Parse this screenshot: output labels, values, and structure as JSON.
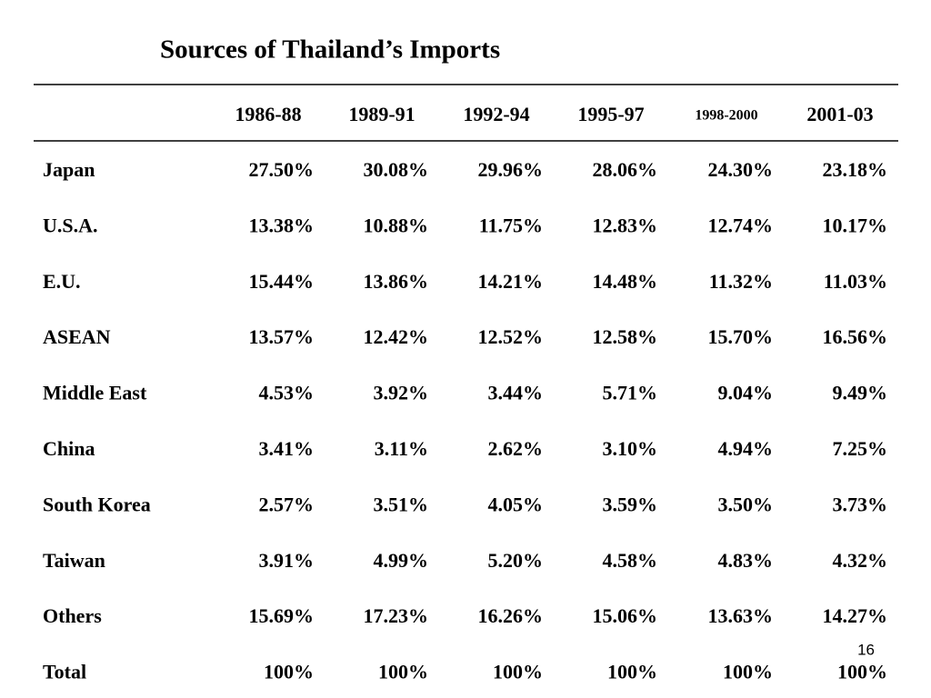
{
  "header": {
    "title": "Sources of Thailand’s Imports"
  },
  "table": {
    "columns": [
      "1986-88",
      "1989-91",
      "1992-94",
      "1995-97",
      "1998-2000",
      "2001-03"
    ],
    "rows": [
      [
        "Japan",
        "27.50%",
        "30.08%",
        "29.96%",
        "28.06%",
        "24.30%",
        "23.18%"
      ],
      [
        "U.S.A.",
        "13.38%",
        "10.88%",
        "11.75%",
        "12.83%",
        "12.74%",
        "10.17%"
      ],
      [
        "E.U.",
        "15.44%",
        "13.86%",
        "14.21%",
        "14.48%",
        "11.32%",
        "11.03%"
      ],
      [
        "ASEAN",
        "13.57%",
        "12.42%",
        "12.52%",
        "12.58%",
        "15.70%",
        "16.56%"
      ],
      [
        "Middle East",
        "4.53%",
        "3.92%",
        "3.44%",
        "5.71%",
        "9.04%",
        "9.49%"
      ],
      [
        "China",
        "3.41%",
        "3.11%",
        "2.62%",
        "3.10%",
        "4.94%",
        "7.25%"
      ],
      [
        "South Korea",
        "2.57%",
        "3.51%",
        "4.05%",
        "3.59%",
        "3.50%",
        "3.73%"
      ],
      [
        "Taiwan",
        "3.91%",
        "4.99%",
        "5.20%",
        "4.58%",
        "4.83%",
        "4.32%"
      ],
      [
        "Others",
        "15.69%",
        "17.23%",
        "16.26%",
        "15.06%",
        "13.63%",
        "14.27%"
      ],
      [
        "Total",
        "100%",
        "100%",
        "100%",
        "100%",
        "100%",
        "100%"
      ]
    ]
  },
  "footer": {
    "page_number": "16"
  }
}
